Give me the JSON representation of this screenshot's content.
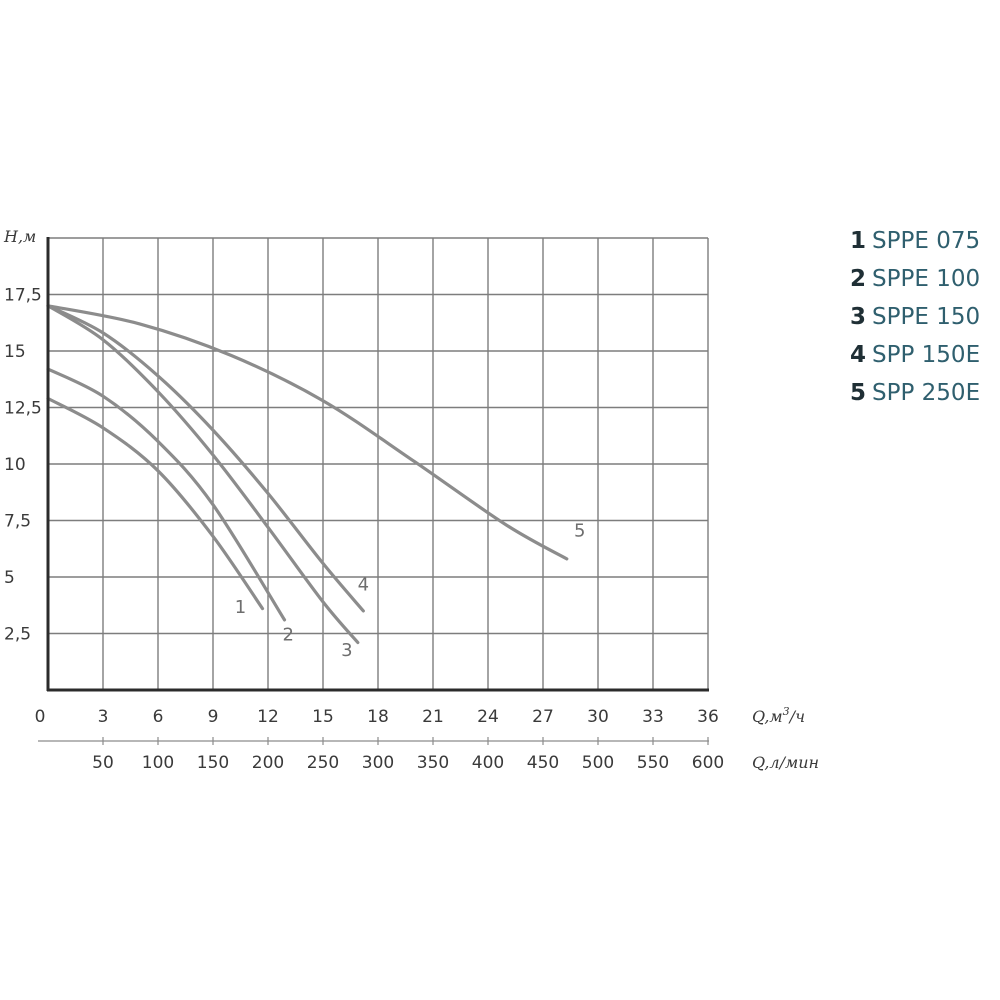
{
  "chart_data": {
    "type": "line",
    "xlabel": "Q,м³/ч",
    "xlabel_base": "Q,м",
    "xlabel_sup": "3",
    "xlabel_tail": "/ч",
    "x2label": "Q,л/мин",
    "ylabel": "H,м",
    "xlim": [
      0,
      36
    ],
    "ylim": [
      0,
      20
    ],
    "x_ticks": [
      "0",
      "3",
      "6",
      "9",
      "12",
      "15",
      "18",
      "21",
      "24",
      "27",
      "30",
      "33",
      "36"
    ],
    "x_tick_values": [
      0,
      3,
      6,
      9,
      12,
      15,
      18,
      21,
      24,
      27,
      30,
      33,
      36
    ],
    "x2_ticks": [
      "50",
      "100",
      "150",
      "200",
      "250",
      "300",
      "350",
      "400",
      "450",
      "500",
      "550",
      "600"
    ],
    "x2_tick_values": [
      50,
      100,
      150,
      200,
      250,
      300,
      350,
      400,
      450,
      500,
      550,
      600
    ],
    "x2_per_x": 16.6667,
    "y_ticks": [
      "2,5",
      "5",
      "7,5",
      "10",
      "12,5",
      "15",
      "17,5"
    ],
    "y_tick_values": [
      2.5,
      5,
      7.5,
      10,
      12.5,
      15,
      17.5
    ],
    "grid": true,
    "line_color": "#8c8c8c",
    "grid_color": "#7d7d7d",
    "axis_color": "#2b2b2b",
    "series": [
      {
        "label": "1",
        "points": [
          [
            0,
            12.9
          ],
          [
            3,
            11.6
          ],
          [
            6,
            9.7
          ],
          [
            9,
            6.8
          ],
          [
            11.7,
            3.6
          ]
        ],
        "label_at": [
          10.5,
          3.4
        ]
      },
      {
        "label": "2",
        "points": [
          [
            0,
            14.2
          ],
          [
            3,
            13.0
          ],
          [
            6,
            11.0
          ],
          [
            9,
            8.2
          ],
          [
            12.9,
            3.1
          ]
        ],
        "label_at": [
          13.1,
          2.2
        ]
      },
      {
        "label": "3",
        "points": [
          [
            0,
            17.0
          ],
          [
            3,
            15.5
          ],
          [
            6,
            13.2
          ],
          [
            9,
            10.4
          ],
          [
            12,
            7.2
          ],
          [
            15,
            3.9
          ],
          [
            16.9,
            2.1
          ]
        ],
        "label_at": [
          16.3,
          1.5
        ]
      },
      {
        "label": "4",
        "points": [
          [
            0,
            17.0
          ],
          [
            3,
            15.8
          ],
          [
            6,
            13.9
          ],
          [
            9,
            11.5
          ],
          [
            12,
            8.7
          ],
          [
            15,
            5.6
          ],
          [
            17.2,
            3.5
          ]
        ],
        "label_at": [
          17.2,
          4.4
        ]
      },
      {
        "label": "5",
        "points": [
          [
            0,
            17.0
          ],
          [
            5,
            16.2
          ],
          [
            10,
            14.8
          ],
          [
            15,
            12.8
          ],
          [
            20,
            10.1
          ],
          [
            25,
            7.3
          ],
          [
            28.3,
            5.8
          ]
        ],
        "label_at": [
          29.0,
          6.8
        ]
      }
    ]
  },
  "legend": [
    {
      "num": "1",
      "name": "SPPE 075"
    },
    {
      "num": "2",
      "name": "SPPE 100"
    },
    {
      "num": "3",
      "name": "SPPE 150"
    },
    {
      "num": "4",
      "name": "SPP 150E"
    },
    {
      "num": "5",
      "name": "SPP 250E"
    }
  ]
}
